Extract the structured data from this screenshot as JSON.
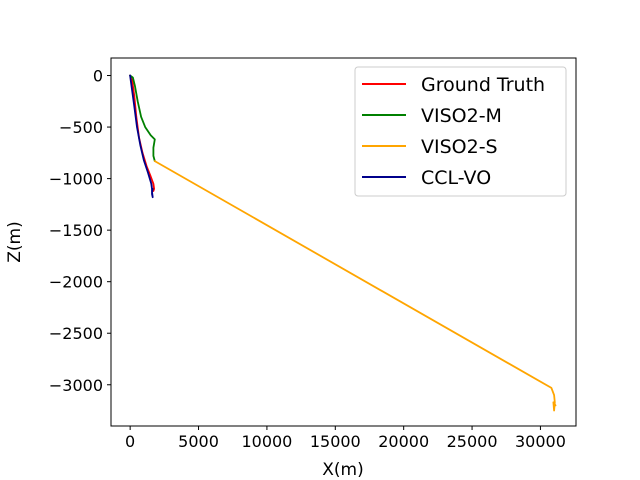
{
  "chart_data": {
    "type": "line",
    "title": "",
    "xlabel": "X(m)",
    "ylabel": "Z(m)",
    "xlim": [
      -1400,
      32600
    ],
    "ylim": [
      -3400,
      170
    ],
    "xticks": [
      0,
      5000,
      10000,
      15000,
      20000,
      25000,
      30000
    ],
    "yticks": [
      0,
      -500,
      -1000,
      -1500,
      -2000,
      -2500,
      -3000
    ],
    "grid": false,
    "legend": "top-right",
    "series": [
      {
        "name": "Ground Truth",
        "color": "#ff0000",
        "x": [
          0,
          150,
          300,
          450,
          650,
          900,
          1200,
          1500,
          1700,
          1750,
          1700
        ],
        "y": [
          0,
          -50,
          -200,
          -400,
          -600,
          -750,
          -880,
          -980,
          -1050,
          -1100,
          -1120
        ]
      },
      {
        "name": "VISO2-M",
        "color": "#008000",
        "x": [
          0,
          200,
          350,
          550,
          800,
          1100,
          1500,
          1800,
          1700,
          1700,
          1800
        ],
        "y": [
          0,
          -20,
          -100,
          -250,
          -400,
          -500,
          -580,
          -620,
          -700,
          -780,
          -830
        ]
      },
      {
        "name": "VISO2-S",
        "color": "#ffa500",
        "x": [
          1800,
          30800,
          31000,
          31050,
          31000,
          30950,
          31100
        ],
        "y": [
          -830,
          -3030,
          -3100,
          -3170,
          -3250,
          -3170,
          -3200
        ]
      },
      {
        "name": "CCL-VO",
        "color": "#00008b",
        "x": [
          0,
          50,
          150,
          300,
          500,
          750,
          1000,
          1300,
          1550,
          1600,
          1600,
          1650,
          1600,
          1650
        ],
        "y": [
          0,
          -50,
          -150,
          -300,
          -500,
          -680,
          -820,
          -940,
          -1050,
          -1100,
          -1150,
          -1180,
          -1130,
          -1100
        ]
      }
    ]
  }
}
